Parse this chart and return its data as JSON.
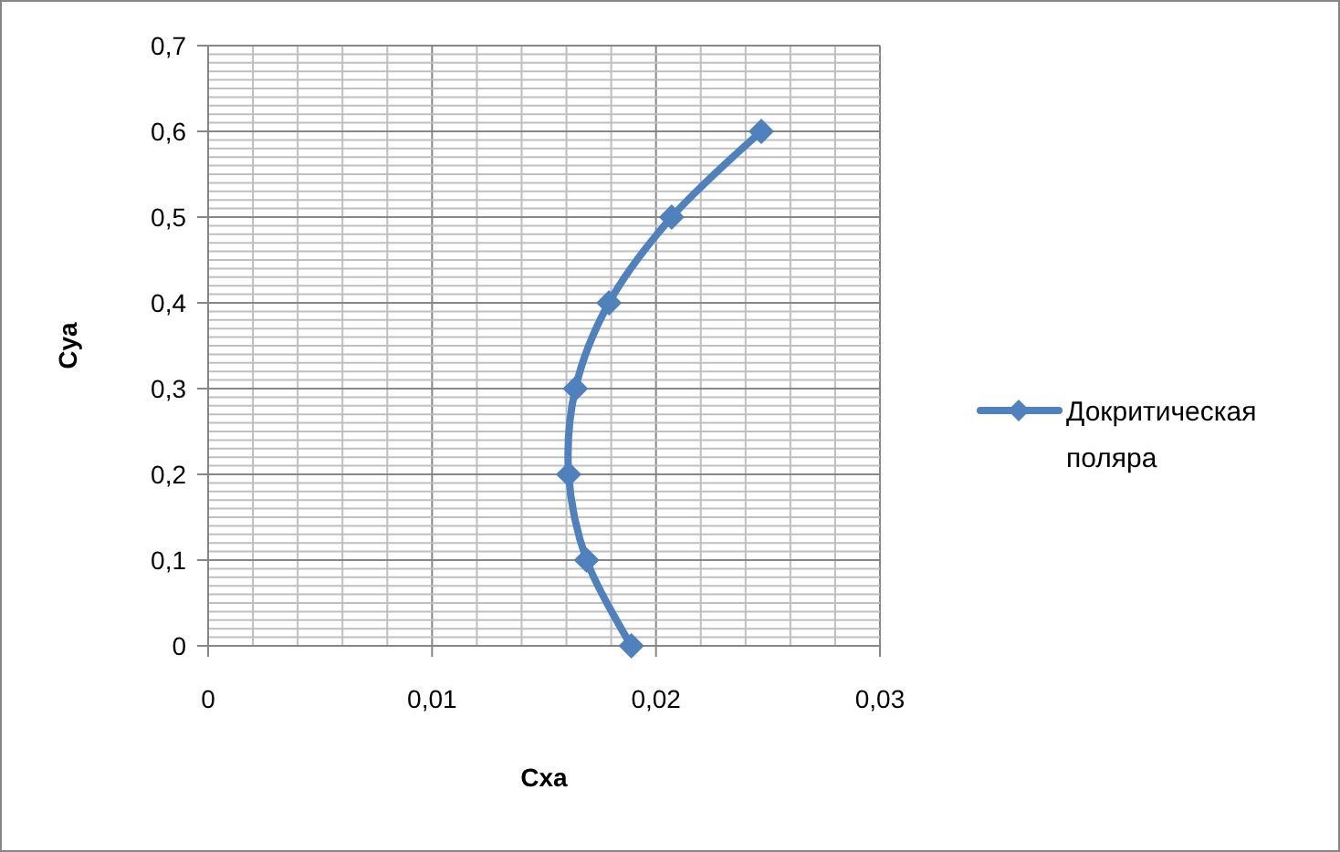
{
  "chart_data": {
    "type": "line",
    "xlabel": "Cxa",
    "ylabel": "Cya",
    "x": [
      0.0189,
      0.0169,
      0.0161,
      0.0164,
      0.0179,
      0.0207,
      0.0247
    ],
    "series": [
      {
        "name": "Докритическая поляра",
        "color": "#4f81bd",
        "values": [
          0,
          0.1,
          0.2,
          0.3,
          0.4,
          0.5,
          0.6
        ]
      }
    ],
    "xlim": [
      0,
      0.03
    ],
    "ylim": [
      0,
      0.7
    ],
    "xticks": [
      0,
      {
        "value": 0.002,
        "label": null
      },
      {
        "value": 0.004,
        "label": null
      },
      {
        "value": 0.006,
        "label": null
      },
      {
        "value": 0.008,
        "label": null
      },
      {
        "value": 0.01,
        "label": "0,01"
      },
      {
        "value": 0.012,
        "label": null
      },
      {
        "value": 0.014,
        "label": null
      },
      {
        "value": 0.016,
        "label": null
      },
      {
        "value": 0.018,
        "label": null
      },
      {
        "value": 0.02,
        "label": "0,02"
      },
      {
        "value": 0.022,
        "label": null
      },
      {
        "value": 0.024,
        "label": null
      },
      {
        "value": 0.026,
        "label": null
      },
      {
        "value": 0.028,
        "label": null
      },
      {
        "value": 0.03,
        "label": "0,03"
      }
    ],
    "yticks": [
      0,
      {
        "value": 0.01,
        "label": null
      },
      {
        "value": 0.02,
        "label": null
      },
      {
        "value": 0.03,
        "label": null
      },
      {
        "value": 0.04,
        "label": null
      },
      {
        "value": 0.05,
        "label": null
      },
      {
        "value": 0.06,
        "label": null
      },
      {
        "value": 0.07,
        "label": null
      },
      {
        "value": 0.08,
        "label": null
      },
      {
        "value": 0.09,
        "label": null
      },
      {
        "value": 0.1,
        "label": "0,1"
      },
      {
        "value": 0.11,
        "label": null
      },
      {
        "value": 0.12,
        "label": null
      },
      {
        "value": 0.13,
        "label": null
      },
      {
        "value": 0.14,
        "label": null
      },
      {
        "value": 0.15,
        "label": null
      },
      {
        "value": 0.16,
        "label": null
      },
      {
        "value": 0.17,
        "label": null
      },
      {
        "value": 0.18,
        "label": null
      },
      {
        "value": 0.19,
        "label": null
      },
      {
        "value": 0.2,
        "label": "0,2"
      },
      {
        "value": 0.21,
        "label": null
      },
      {
        "value": 0.22,
        "label": null
      },
      {
        "value": 0.23,
        "label": null
      },
      {
        "value": 0.24,
        "label": null
      },
      {
        "value": 0.25,
        "label": null
      },
      {
        "value": 0.26,
        "label": null
      },
      {
        "value": 0.27,
        "label": null
      },
      {
        "value": 0.28,
        "label": null
      },
      {
        "value": 0.29,
        "label": null
      },
      {
        "value": 0.3,
        "label": "0,3"
      },
      {
        "value": 0.31,
        "label": null
      },
      {
        "value": 0.32,
        "label": null
      },
      {
        "value": 0.33,
        "label": null
      },
      {
        "value": 0.34,
        "label": null
      },
      {
        "value": 0.35,
        "label": null
      },
      {
        "value": 0.36,
        "label": null
      },
      {
        "value": 0.37,
        "label": null
      },
      {
        "value": 0.38,
        "label": null
      },
      {
        "value": 0.39,
        "label": null
      },
      {
        "value": 0.4,
        "label": "0,4"
      },
      {
        "value": 0.41,
        "label": null
      },
      {
        "value": 0.42,
        "label": null
      },
      {
        "value": 0.43,
        "label": null
      },
      {
        "value": 0.44,
        "label": null
      },
      {
        "value": 0.45,
        "label": null
      },
      {
        "value": 0.46,
        "label": null
      },
      {
        "value": 0.47,
        "label": null
      },
      {
        "value": 0.48,
        "label": null
      },
      {
        "value": 0.49,
        "label": null
      },
      {
        "value": 0.5,
        "label": "0,5"
      },
      {
        "value": 0.51,
        "label": null
      },
      {
        "value": 0.52,
        "label": null
      },
      {
        "value": 0.53,
        "label": null
      },
      {
        "value": 0.54,
        "label": null
      },
      {
        "value": 0.55,
        "label": null
      },
      {
        "value": 0.56,
        "label": null
      },
      {
        "value": 0.57,
        "label": null
      },
      {
        "value": 0.58,
        "label": null
      },
      {
        "value": 0.59,
        "label": null
      },
      {
        "value": 0.6,
        "label": "0,6"
      },
      {
        "value": 0.61,
        "label": null
      },
      {
        "value": 0.62,
        "label": null
      },
      {
        "value": 0.63,
        "label": null
      },
      {
        "value": 0.64,
        "label": null
      },
      {
        "value": 0.65,
        "label": null
      },
      {
        "value": 0.66,
        "label": null
      },
      {
        "value": 0.67,
        "label": null
      },
      {
        "value": 0.68,
        "label": null
      },
      {
        "value": 0.69,
        "label": null
      },
      {
        "value": 0.7,
        "label": "0,7"
      }
    ],
    "grid": true,
    "legend": "right",
    "marker": "diamond",
    "line_style": "solid"
  }
}
